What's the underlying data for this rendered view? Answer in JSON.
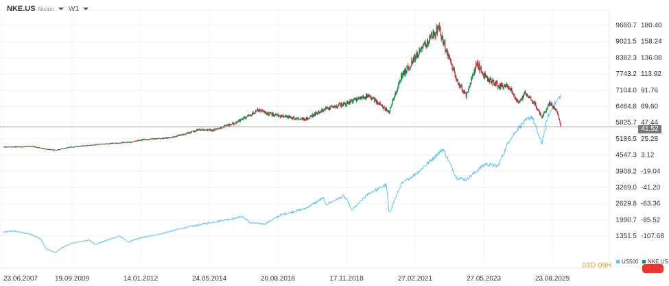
{
  "header": {
    "symbol": "NKE.US",
    "symbol_subtitle": "Akcion",
    "timeframe": "W1"
  },
  "countdown": "03D 09H",
  "legend": {
    "us500": "US500",
    "nke": "NKE.US"
  },
  "current_price_label": "41.52",
  "colors": {
    "nke_up": "#1b8a4c",
    "nke_down": "#b8293c",
    "us500": "#5cc0f0",
    "price_line": "#999999"
  },
  "chart_data": {
    "type": "line",
    "x_tick_labels": [
      "23.06.2007",
      "19.09.2009",
      "14.01.2012",
      "24.05.2014",
      "20.08.2016",
      "17.11.2018",
      "27.02.2021",
      "27.05.2023",
      "23.08.2025"
    ],
    "y_left_ticks": [
      "9660.7",
      "9021.5",
      "8382.3",
      "7743.2",
      "7104.0",
      "6464.8",
      "5825.7",
      "5186.5",
      "4547.3",
      "3908.2",
      "3269.0",
      "2629.8",
      "1990.7",
      "1351.5"
    ],
    "y_right_ticks": [
      "180.40",
      "158.24",
      "136.08",
      "113.92",
      "91.76",
      "69.60",
      "47.44",
      "25.28",
      "3.12",
      "-19.04",
      "-41.20",
      "-63.36",
      "-85.52",
      "-107.68"
    ],
    "series": [
      {
        "name": "US500",
        "axis": "left",
        "points": [
          [
            "2007-06-23",
            1500
          ],
          [
            "2007-10-15",
            1560
          ],
          [
            "2008-05-20",
            1420
          ],
          [
            "2008-09-15",
            1250
          ],
          [
            "2008-11-20",
            850
          ],
          [
            "2009-03-09",
            700
          ],
          [
            "2009-06-15",
            920
          ],
          [
            "2009-09-19",
            1060
          ],
          [
            "2010-04-15",
            1200
          ],
          [
            "2010-07-05",
            1030
          ],
          [
            "2011-04-25",
            1360
          ],
          [
            "2011-08-08",
            1120
          ],
          [
            "2012-01-14",
            1290
          ],
          [
            "2012-09-15",
            1450
          ],
          [
            "2013-05-20",
            1660
          ],
          [
            "2014-05-24",
            1900
          ],
          [
            "2015-05-20",
            2120
          ],
          [
            "2015-08-24",
            1870
          ],
          [
            "2016-02-11",
            1830
          ],
          [
            "2016-08-20",
            2180
          ],
          [
            "2017-06-15",
            2440
          ],
          [
            "2018-01-26",
            2870
          ],
          [
            "2018-02-09",
            2580
          ],
          [
            "2018-09-20",
            2930
          ],
          [
            "2018-11-17",
            2700
          ],
          [
            "2018-12-24",
            2350
          ],
          [
            "2019-07-15",
            3020
          ],
          [
            "2020-02-19",
            3380
          ],
          [
            "2020-03-23",
            2240
          ],
          [
            "2020-08-15",
            3400
          ],
          [
            "2021-02-27",
            3850
          ],
          [
            "2022-01-03",
            4790
          ],
          [
            "2022-06-16",
            3650
          ],
          [
            "2022-10-12",
            3580
          ],
          [
            "2023-05-27",
            4200
          ],
          [
            "2023-10-27",
            4100
          ],
          [
            "2024-03-15",
            5150
          ],
          [
            "2024-07-15",
            5670
          ],
          [
            "2024-12-10",
            6090
          ],
          [
            "2025-04-08",
            4980
          ],
          [
            "2025-06-15",
            6000
          ],
          [
            "2025-08-23",
            6470
          ],
          [
            "2025-11-25",
            6900
          ]
        ]
      },
      {
        "name": "NKE.US",
        "axis": "right",
        "points": [
          [
            "2007-06-23",
            14
          ],
          [
            "2008-06-15",
            15
          ],
          [
            "2008-11-20",
            11
          ],
          [
            "2009-03-09",
            10
          ],
          [
            "2009-09-19",
            14
          ],
          [
            "2010-09-15",
            18
          ],
          [
            "2011-09-15",
            21
          ],
          [
            "2012-01-14",
            24
          ],
          [
            "2013-01-15",
            27
          ],
          [
            "2013-12-15",
            38
          ],
          [
            "2014-05-24",
            37
          ],
          [
            "2015-03-15",
            48
          ],
          [
            "2015-11-15",
            64
          ],
          [
            "2016-08-20",
            56
          ],
          [
            "2017-06-15",
            52
          ],
          [
            "2018-01-15",
            65
          ],
          [
            "2018-11-17",
            75
          ],
          [
            "2019-07-15",
            85
          ],
          [
            "2020-03-23",
            62
          ],
          [
            "2020-08-15",
            110
          ],
          [
            "2021-02-27",
            140
          ],
          [
            "2021-11-10",
            177
          ],
          [
            "2022-06-16",
            105
          ],
          [
            "2022-10-12",
            84
          ],
          [
            "2023-02-15",
            128
          ],
          [
            "2023-05-27",
            110
          ],
          [
            "2023-10-27",
            98
          ],
          [
            "2024-03-15",
            96
          ],
          [
            "2024-06-27",
            74
          ],
          [
            "2024-09-15",
            87
          ],
          [
            "2025-01-15",
            73
          ],
          [
            "2025-04-08",
            54
          ],
          [
            "2025-07-15",
            75
          ],
          [
            "2025-10-15",
            62
          ],
          [
            "2025-11-25",
            41.52
          ]
        ]
      }
    ],
    "current_value": 41.52,
    "grid": true
  }
}
